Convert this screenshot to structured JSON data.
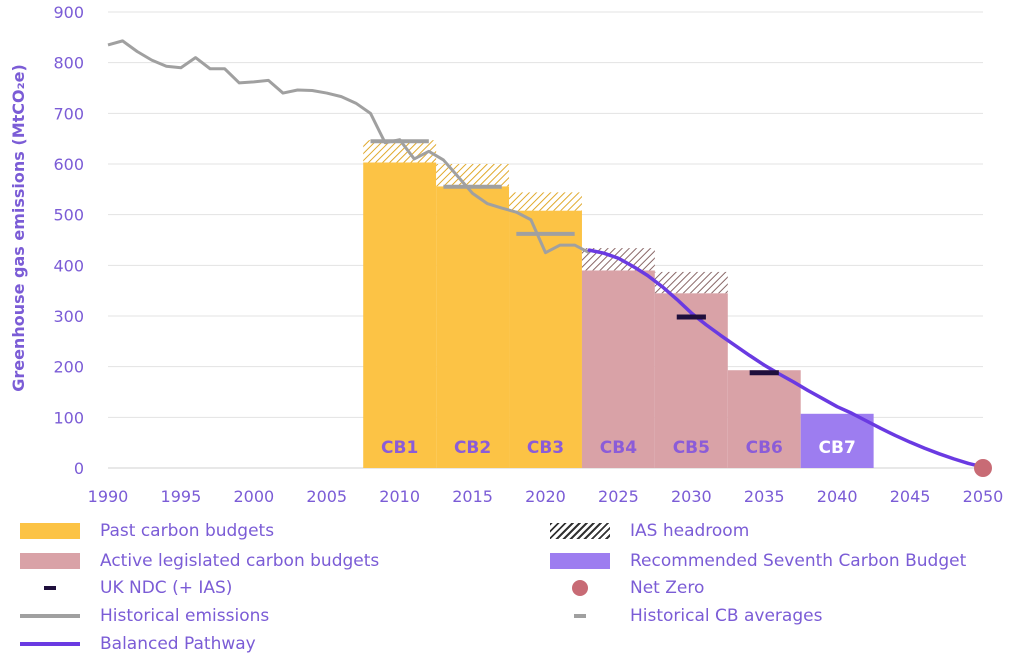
{
  "chart_data": {
    "type": "bar+line",
    "ylabel": "Greenhouse gas emissions (MtCO₂e)",
    "ylim": [
      0,
      900
    ],
    "yticks": [
      0,
      100,
      200,
      300,
      400,
      500,
      600,
      700,
      800,
      900
    ],
    "xlim": [
      1990,
      2050
    ],
    "xticks": [
      1990,
      1995,
      2000,
      2005,
      2010,
      2015,
      2020,
      2025,
      2030,
      2035,
      2040,
      2045,
      2050
    ],
    "grid": true,
    "legend_position": "bottom",
    "carbon_budgets": [
      {
        "label": "CB1",
        "start": 2008,
        "end": 2012,
        "value": 603,
        "ias_headroom": 44,
        "category": "Past carbon budgets"
      },
      {
        "label": "CB2",
        "start": 2013,
        "end": 2017,
        "value": 556,
        "ias_headroom": 44,
        "category": "Past carbon budgets"
      },
      {
        "label": "CB3",
        "start": 2018,
        "end": 2022,
        "value": 508,
        "ias_headroom": 36,
        "category": "Past carbon budgets"
      },
      {
        "label": "CB4",
        "start": 2023,
        "end": 2027,
        "value": 390,
        "ias_headroom": 44,
        "category": "Active legislated carbon budgets"
      },
      {
        "label": "CB5",
        "start": 2028,
        "end": 2032,
        "value": 345,
        "ias_headroom": 42,
        "category": "Active legislated carbon budgets"
      },
      {
        "label": "CB6",
        "start": 2033,
        "end": 2037,
        "value": 193,
        "ias_headroom": 0,
        "category": "Active legislated carbon budgets"
      },
      {
        "label": "CB7",
        "start": 2038,
        "end": 2042,
        "value": 107,
        "ias_headroom": 0,
        "category": "Recommended Seventh Carbon Budget"
      }
    ],
    "historical_emissions": {
      "x": [
        1990,
        1991,
        1992,
        1993,
        1994,
        1995,
        1996,
        1997,
        1998,
        1999,
        2000,
        2001,
        2002,
        2003,
        2004,
        2005,
        2006,
        2007,
        2008,
        2009,
        2010,
        2011,
        2012,
        2013,
        2014,
        2015,
        2016,
        2017,
        2018,
        2019,
        2020,
        2021,
        2022,
        2023
      ],
      "y": [
        835,
        843,
        822,
        805,
        793,
        790,
        810,
        788,
        788,
        760,
        762,
        765,
        740,
        746,
        745,
        740,
        733,
        720,
        700,
        642,
        648,
        610,
        625,
        608,
        575,
        542,
        522,
        513,
        505,
        490,
        425,
        440,
        440,
        425
      ]
    },
    "historical_cb_averages": [
      {
        "x": [
          2008,
          2012
        ],
        "y": 645
      },
      {
        "x": [
          2013,
          2017
        ],
        "y": 555
      },
      {
        "x": [
          2018,
          2022
        ],
        "y": 462
      }
    ],
    "balanced_pathway": {
      "x": [
        2023,
        2024,
        2025,
        2026,
        2027,
        2028,
        2029,
        2030,
        2031,
        2032,
        2033,
        2034,
        2035,
        2036,
        2037,
        2038,
        2039,
        2040,
        2041,
        2042,
        2043,
        2044,
        2045,
        2046,
        2047,
        2048,
        2049,
        2050
      ],
      "y": [
        430,
        424,
        414,
        398,
        380,
        358,
        333,
        306,
        283,
        262,
        242,
        222,
        203,
        186,
        170,
        153,
        137,
        121,
        108,
        93,
        78,
        64,
        51,
        39,
        28,
        18,
        9,
        2
      ]
    },
    "uk_ndc_ias": [
      {
        "x": [
          2029,
          2031
        ],
        "y": 298
      },
      {
        "x": [
          2034,
          2036
        ],
        "y": 188
      }
    ],
    "net_zero": {
      "x": 2050,
      "y": 0
    }
  },
  "legend": [
    {
      "label": "Past carbon budgets",
      "icon": "fill-yellow"
    },
    {
      "label": "IAS headroom",
      "icon": "hatch"
    },
    {
      "label": "Active legislated carbon budgets",
      "icon": "fill-pink"
    },
    {
      "label": "Recommended Seventh Carbon Budget",
      "icon": "fill-purple"
    },
    {
      "label": "UK NDC (+ IAS)",
      "icon": "short-dash-dark"
    },
    {
      "label": "Net Zero",
      "icon": "circle-marker"
    },
    {
      "label": "Historical emissions",
      "icon": "line-grey"
    },
    {
      "label": "Historical CB averages",
      "icon": "short-dash-grey"
    },
    {
      "label": "Balanced Pathway",
      "icon": "line-purple"
    }
  ],
  "colors": {
    "past_budget": "#fcc345",
    "past_hatch": "#e0a92c",
    "active_budget": "#d9a2a7",
    "active_hatch": "#8a6868",
    "cb7": "#9d7df0",
    "historical": "#a0a0a0",
    "balanced": "#6a3ae2",
    "ndc": "#1f0f3c",
    "net_zero": "#c86b75",
    "text": "#7b5cd6",
    "cb_label_yellow": "#8b5cd8",
    "cb_label_white": "#ffffff",
    "grid": "#e3e3e3"
  }
}
